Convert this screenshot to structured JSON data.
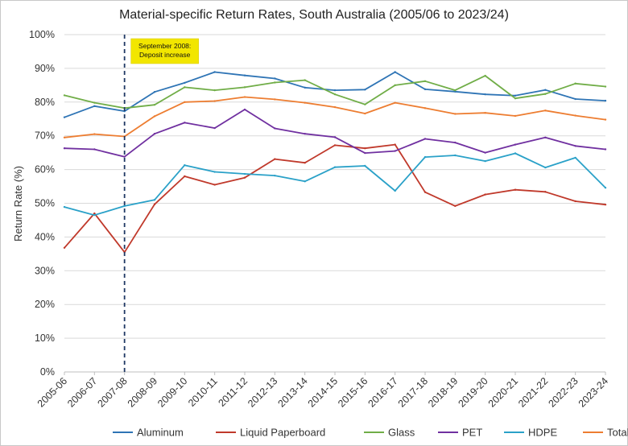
{
  "chart_data": {
    "type": "line",
    "title": "Material-specific Return Rates, South Australia (2005/06 to 2023/24)",
    "ylabel": "Return Rate (%)",
    "xlabel": "",
    "ylim": [
      0,
      100
    ],
    "y_ticks": [
      "0%",
      "10%",
      "20%",
      "30%",
      "40%",
      "50%",
      "60%",
      "70%",
      "80%",
      "90%",
      "100%"
    ],
    "categories": [
      "2005-06",
      "2006-07",
      "2007-08",
      "2008-09",
      "2009-10",
      "2010-11",
      "2011-12",
      "2012-13",
      "2013-14",
      "2014-15",
      "2015-16",
      "2016-17",
      "2017-18",
      "2018-19",
      "2019-20",
      "2020-21",
      "2021-22",
      "2022-23",
      "2023-24"
    ],
    "grid": "horizontal",
    "legend_position": "bottom",
    "series": [
      {
        "name": "Aluminum",
        "color": "#2e74b5",
        "values": [
          75.5,
          78.8,
          77.3,
          83.0,
          85.7,
          88.9,
          87.9,
          87.0,
          84.3,
          83.5,
          83.7,
          88.9,
          83.8,
          83.1,
          82.3,
          81.9,
          83.6,
          80.9,
          80.4
        ]
      },
      {
        "name": "Liquid Paperboard",
        "color": "#c0392b",
        "values": [
          36.8,
          47.0,
          35.5,
          49.7,
          58.0,
          55.5,
          57.6,
          63.1,
          62.0,
          67.2,
          66.3,
          67.4,
          53.3,
          49.2,
          52.6,
          54.0,
          53.4,
          50.6,
          49.6
        ]
      },
      {
        "name": "Glass",
        "color": "#70ad47",
        "values": [
          82.0,
          79.8,
          78.2,
          79.2,
          84.4,
          83.5,
          84.4,
          85.8,
          86.5,
          82.3,
          79.3,
          85.0,
          86.2,
          83.5,
          87.8,
          81.1,
          82.4,
          85.5,
          84.6
        ]
      },
      {
        "name": "PET",
        "color": "#7030a0",
        "values": [
          66.3,
          66.0,
          63.8,
          70.6,
          73.9,
          72.3,
          77.8,
          72.2,
          70.6,
          69.6,
          64.9,
          65.5,
          69.1,
          68.0,
          65.0,
          67.4,
          69.5,
          67.0,
          66.0
        ]
      },
      {
        "name": "HDPE",
        "color": "#2aa1c8",
        "values": [
          48.9,
          46.5,
          49.2,
          51.0,
          61.3,
          59.3,
          58.7,
          58.2,
          56.5,
          60.7,
          61.1,
          53.7,
          63.7,
          64.2,
          62.5,
          64.8,
          60.6,
          63.5,
          54.6
        ]
      },
      {
        "name": "Total",
        "color": "#ed7d31",
        "values": [
          69.5,
          70.5,
          69.8,
          75.8,
          80.0,
          80.3,
          81.5,
          80.8,
          79.8,
          78.5,
          76.6,
          79.8,
          78.2,
          76.5,
          76.8,
          75.9,
          77.5,
          76.0,
          74.8
        ]
      }
    ],
    "annotation": {
      "lines": [
        "September 2008:",
        "Deposit increase"
      ],
      "background": "#f2e600",
      "marker_category": "2007-08",
      "marker_style": "dashed",
      "marker_color": "#1f3864"
    }
  }
}
